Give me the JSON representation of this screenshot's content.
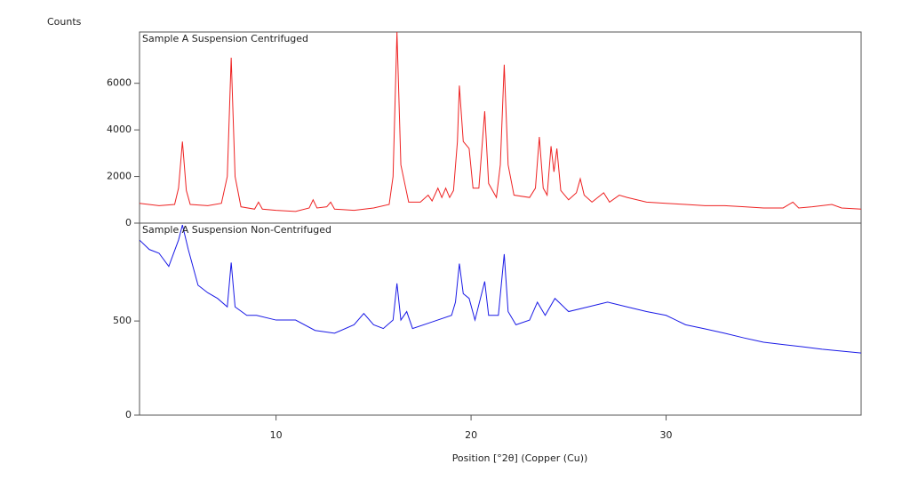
{
  "chart_data": [
    {
      "type": "line",
      "title": "Sample A Suspension Centrifuged",
      "y_label": "Counts",
      "color": "#ee2222",
      "xlim": [
        3,
        40
      ],
      "ylim": [
        0,
        8200
      ],
      "yticks": [
        0,
        2000,
        4000,
        6000
      ],
      "x": [
        3.0,
        4.0,
        4.8,
        5.0,
        5.2,
        5.4,
        5.6,
        6.5,
        7.2,
        7.5,
        7.7,
        7.9,
        8.2,
        8.9,
        9.1,
        9.3,
        10.0,
        11.0,
        11.7,
        11.9,
        12.1,
        12.6,
        12.8,
        13.0,
        14.0,
        15.0,
        15.8,
        16.0,
        16.2,
        16.4,
        16.6,
        16.8,
        17.4,
        17.8,
        18.0,
        18.3,
        18.5,
        18.7,
        18.9,
        19.1,
        19.3,
        19.4,
        19.6,
        19.9,
        20.1,
        20.4,
        20.7,
        20.9,
        21.3,
        21.5,
        21.7,
        21.9,
        22.2,
        23.0,
        23.3,
        23.5,
        23.7,
        23.9,
        24.1,
        24.25,
        24.4,
        24.6,
        25.0,
        25.4,
        25.6,
        25.8,
        26.2,
        26.8,
        27.1,
        27.6,
        28.0,
        29.0,
        30.0,
        31.0,
        32.0,
        33.0,
        34.0,
        35.0,
        36.0,
        36.5,
        36.8,
        37.5,
        38.5,
        39.0,
        40.0
      ],
      "values": [
        850,
        750,
        800,
        1500,
        3500,
        1400,
        800,
        750,
        850,
        2000,
        7100,
        2000,
        700,
        600,
        900,
        600,
        550,
        500,
        650,
        1000,
        650,
        700,
        900,
        600,
        550,
        650,
        800,
        2000,
        8200,
        2500,
        1700,
        900,
        900,
        1200,
        950,
        1500,
        1100,
        1500,
        1100,
        1400,
        3500,
        5900,
        3500,
        3200,
        1500,
        1500,
        4800,
        1700,
        1100,
        2500,
        6800,
        2500,
        1200,
        1100,
        1500,
        3700,
        1500,
        1200,
        3300,
        2200,
        3200,
        1400,
        1000,
        1300,
        1900,
        1200,
        900,
        1300,
        900,
        1200,
        1100,
        900,
        850,
        800,
        750,
        750,
        700,
        650,
        650,
        900,
        650,
        700,
        800,
        650,
        600
      ]
    },
    {
      "type": "line",
      "title": "Sample A Suspension Non-Centrifuged",
      "x_label": "Position [°2θ] (Copper (Cu))",
      "color": "#1a1ae6",
      "xlim": [
        3,
        40
      ],
      "ylim": [
        0,
        1020
      ],
      "yticks": [
        0,
        500
      ],
      "xticks": [
        10,
        20,
        30
      ],
      "x": [
        3.0,
        3.5,
        4.0,
        4.5,
        5.0,
        5.2,
        5.5,
        6.0,
        6.5,
        7.0,
        7.5,
        7.7,
        7.9,
        8.5,
        9.0,
        10.0,
        11.0,
        12.0,
        13.0,
        14.0,
        14.5,
        15.0,
        15.5,
        16.0,
        16.2,
        16.4,
        16.7,
        17.0,
        18.0,
        19.0,
        19.2,
        19.4,
        19.6,
        19.9,
        20.2,
        20.7,
        20.9,
        21.4,
        21.7,
        21.9,
        22.3,
        23.0,
        23.4,
        23.8,
        24.3,
        25.0,
        26.0,
        27.0,
        28.0,
        29.0,
        30.0,
        31.0,
        32.0,
        33.0,
        34.0,
        35.0,
        36.0,
        37.0,
        38.0,
        39.0,
        40.0
      ],
      "values": [
        930,
        880,
        860,
        790,
        930,
        1010,
        880,
        690,
        650,
        620,
        575,
        810,
        575,
        530,
        530,
        505,
        505,
        450,
        435,
        480,
        540,
        480,
        460,
        505,
        700,
        505,
        550,
        460,
        495,
        530,
        600,
        805,
        645,
        620,
        505,
        710,
        530,
        530,
        855,
        550,
        480,
        505,
        600,
        530,
        620,
        550,
        575,
        600,
        575,
        550,
        530,
        480,
        458,
        435,
        410,
        387,
        375,
        363,
        350,
        340,
        330
      ]
    }
  ]
}
